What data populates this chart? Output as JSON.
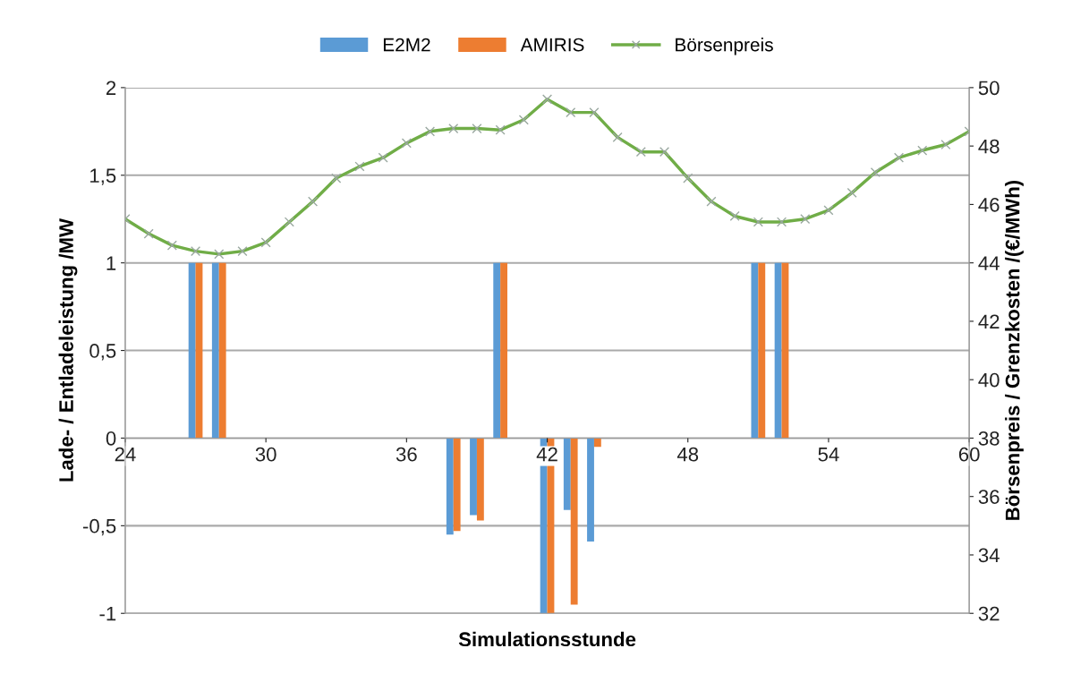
{
  "chart_data": {
    "type": "bar",
    "xlabel": "Simulationsstunde",
    "ylabel": "Lade- / Entladeleistung /MW",
    "y2label": "Börsenpreis / Grenzkosten /(€/MWh)",
    "x": [
      24,
      25,
      26,
      27,
      28,
      29,
      30,
      31,
      32,
      33,
      34,
      35,
      36,
      37,
      38,
      39,
      40,
      41,
      42,
      43,
      44,
      45,
      46,
      47,
      48,
      49,
      50,
      51,
      52,
      53,
      54,
      55,
      56,
      57,
      58,
      59,
      60
    ],
    "series": [
      {
        "name": "E2M2",
        "color": "#5b9bd5",
        "values": [
          null,
          null,
          null,
          1,
          1,
          null,
          null,
          null,
          null,
          null,
          null,
          null,
          null,
          null,
          -0.55,
          -0.44,
          1,
          null,
          -1,
          -0.41,
          -0.59,
          null,
          null,
          null,
          null,
          null,
          null,
          1,
          1,
          null,
          null,
          null,
          null,
          null,
          null,
          null,
          null
        ]
      },
      {
        "name": "AMIRIS",
        "color": "#ed7d31",
        "values": [
          null,
          null,
          null,
          1,
          1,
          null,
          null,
          null,
          null,
          null,
          null,
          null,
          null,
          null,
          -0.53,
          -0.47,
          1,
          null,
          -1,
          -0.95,
          -0.05,
          null,
          null,
          null,
          null,
          null,
          null,
          1,
          1,
          null,
          null,
          null,
          null,
          null,
          null,
          null,
          null
        ]
      },
      {
        "name": "Börsenpreis",
        "type": "line",
        "axis": "y2",
        "color": "#70ad47",
        "marker": "cross",
        "values": [
          45.5,
          45.0,
          44.6,
          44.4,
          44.3,
          44.4,
          44.7,
          45.4,
          46.1,
          46.9,
          47.3,
          47.6,
          48.1,
          48.5,
          48.6,
          48.6,
          48.55,
          48.9,
          49.6,
          49.15,
          49.15,
          48.3,
          47.8,
          47.8,
          46.9,
          46.1,
          45.6,
          45.4,
          45.4,
          45.5,
          45.8,
          46.4,
          47.1,
          47.6,
          47.85,
          48.05,
          48.5
        ]
      }
    ],
    "xlim": [
      24,
      60
    ],
    "xticks": [
      24,
      30,
      36,
      42,
      48,
      54,
      60
    ],
    "ylim": [
      -1,
      2
    ],
    "yticks": [
      {
        "value": -1,
        "label": "-1"
      },
      {
        "value": -0.5,
        "label": "-0,5"
      },
      {
        "value": 0,
        "label": "0"
      },
      {
        "value": 0.5,
        "label": "0,5"
      },
      {
        "value": 1,
        "label": "1"
      },
      {
        "value": 1.5,
        "label": "1,5"
      },
      {
        "value": 2,
        "label": "2"
      }
    ],
    "y2lim": [
      32,
      50
    ],
    "y2ticks": [
      32,
      34,
      36,
      38,
      40,
      42,
      44,
      46,
      48,
      50
    ],
    "grid": "y",
    "legend": "top",
    "line_style": "solid"
  }
}
